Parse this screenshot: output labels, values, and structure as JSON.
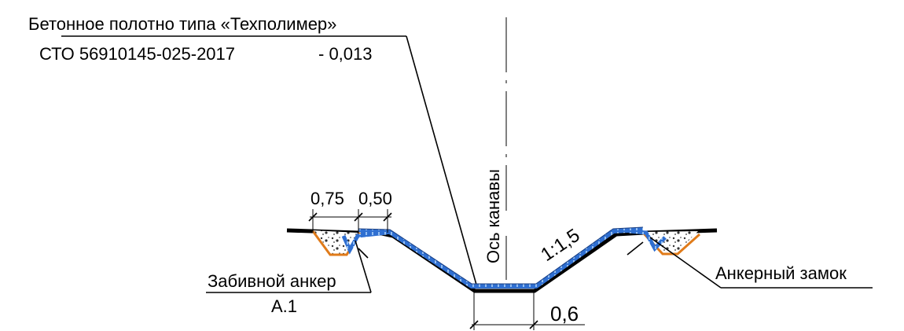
{
  "labels": {
    "material_line1": "Бетонное полотно типа «Техполимер»",
    "material_line2_code": "СТО 56910145-025-2017",
    "material_line2_value": "- 0,013",
    "axis_label": "Ось канавы",
    "slope": "1:1,5",
    "dim_left_1": "0,75",
    "dim_left_2": "0,50",
    "dim_bottom": "0,6",
    "anchor_driven_line1": "Забивной анкер",
    "anchor_driven_line2": "А.1",
    "anchor_lock": "Анкерный замок"
  },
  "colors": {
    "outline": "#000000",
    "mat_fill": "#2f6fd1",
    "mat_stitch": "#bfe0ff",
    "lock_orange": "#e07b1a",
    "gravel": "#444444"
  }
}
